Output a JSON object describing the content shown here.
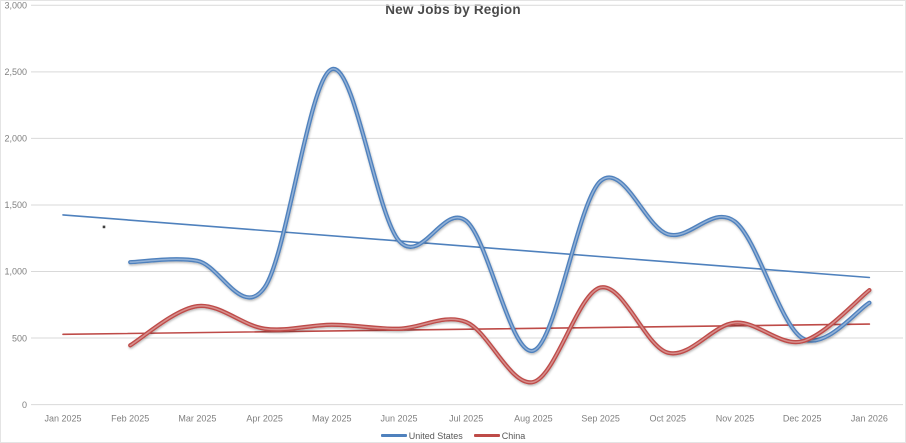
{
  "title": "New Jobs by Region",
  "chart_data": {
    "type": "line",
    "title": "New Jobs by Region",
    "line_style": "smooth",
    "grid": true,
    "legend_position": "bottom",
    "categories": [
      "Jan 2025",
      "Feb 2025",
      "Mar 2025",
      "Apr 2025",
      "May 2025",
      "Jun 2025",
      "Jul 2025",
      "Aug 2025",
      "Sep 2025",
      "Oct 2025",
      "Nov 2025",
      "Dec 2025",
      "Jan 2026"
    ],
    "y_axis": {
      "min": 0,
      "max": 3000,
      "step": 500,
      "tick_labels": [
        "0",
        "500",
        "1,000",
        "1,500",
        "2,000",
        "2,500",
        "3,000"
      ]
    },
    "series": [
      {
        "name": "United States",
        "color": "#4F81BD",
        "values": [
          null,
          1070,
          1080,
          880,
          2520,
          1230,
          1380,
          405,
          1680,
          1280,
          1375,
          500,
          765
        ]
      },
      {
        "name": "China",
        "color": "#BE4B48",
        "values": [
          null,
          445,
          740,
          570,
          600,
          570,
          620,
          170,
          880,
          390,
          615,
          475,
          860
        ]
      }
    ],
    "trendlines": [
      {
        "series": "United States",
        "type": "linear",
        "color": "#4F81BD",
        "start_value": 1425,
        "end_value": 955
      },
      {
        "series": "China",
        "type": "linear",
        "color": "#BE4B48",
        "start_value": 528,
        "end_value": 605
      }
    ],
    "annotations": [
      {
        "name": "stray-dot",
        "month_frac": 0.61,
        "value": 1335,
        "color": "#404040"
      }
    ]
  },
  "legend": {
    "items": [
      {
        "label": "United States",
        "color": "#4F81BD"
      },
      {
        "label": "China",
        "color": "#BE4B48"
      }
    ]
  }
}
